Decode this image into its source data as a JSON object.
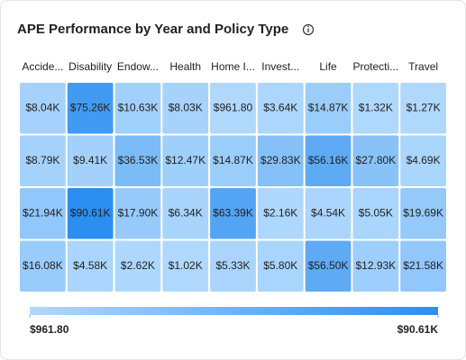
{
  "chart_data": {
    "type": "heatmap",
    "title": "APE Performance by Year and Policy Type",
    "categories": [
      "Accide...",
      "Disability",
      "Endow...",
      "Health",
      "Home I...",
      "Invest...",
      "Life",
      "Protecti...",
      "Travel"
    ],
    "values": [
      [
        8040,
        75260,
        10630,
        8030,
        961.8,
        3640,
        14870,
        1320,
        1270
      ],
      [
        8790,
        9410,
        36530,
        12470,
        14870,
        29830,
        56160,
        27800,
        4690
      ],
      [
        21940,
        90610,
        17900,
        6340,
        63390,
        2160,
        4540,
        5050,
        19690
      ],
      [
        16080,
        4580,
        2620,
        1020,
        5330,
        5800,
        56500,
        12930,
        21580
      ]
    ],
    "value_labels": [
      [
        "$8.04K",
        "$75.26K",
        "$10.63K",
        "$8.03K",
        "$961.80",
        "$3.64K",
        "$14.87K",
        "$1.32K",
        "$1.27K"
      ],
      [
        "$8.79K",
        "$9.41K",
        "$36.53K",
        "$12.47K",
        "$14.87K",
        "$29.83K",
        "$56.16K",
        "$27.80K",
        "$4.69K"
      ],
      [
        "$21.94K",
        "$90.61K",
        "$17.90K",
        "$6.34K",
        "$63.39K",
        "$2.16K",
        "$4.54K",
        "$5.05K",
        "$19.69K"
      ],
      [
        "$16.08K",
        "$4.58K",
        "$2.62K",
        "$1.02K",
        "$5.33K",
        "$5.80K",
        "$56.50K",
        "$12.93K",
        "$21.58K"
      ]
    ],
    "color_range": [
      {
        "value": 961.8,
        "label": "$961.80"
      },
      {
        "value": 90610,
        "label": "$90.61K"
      }
    ],
    "colors": [
      "#b0d8fd",
      "#2b8ef0"
    ]
  }
}
